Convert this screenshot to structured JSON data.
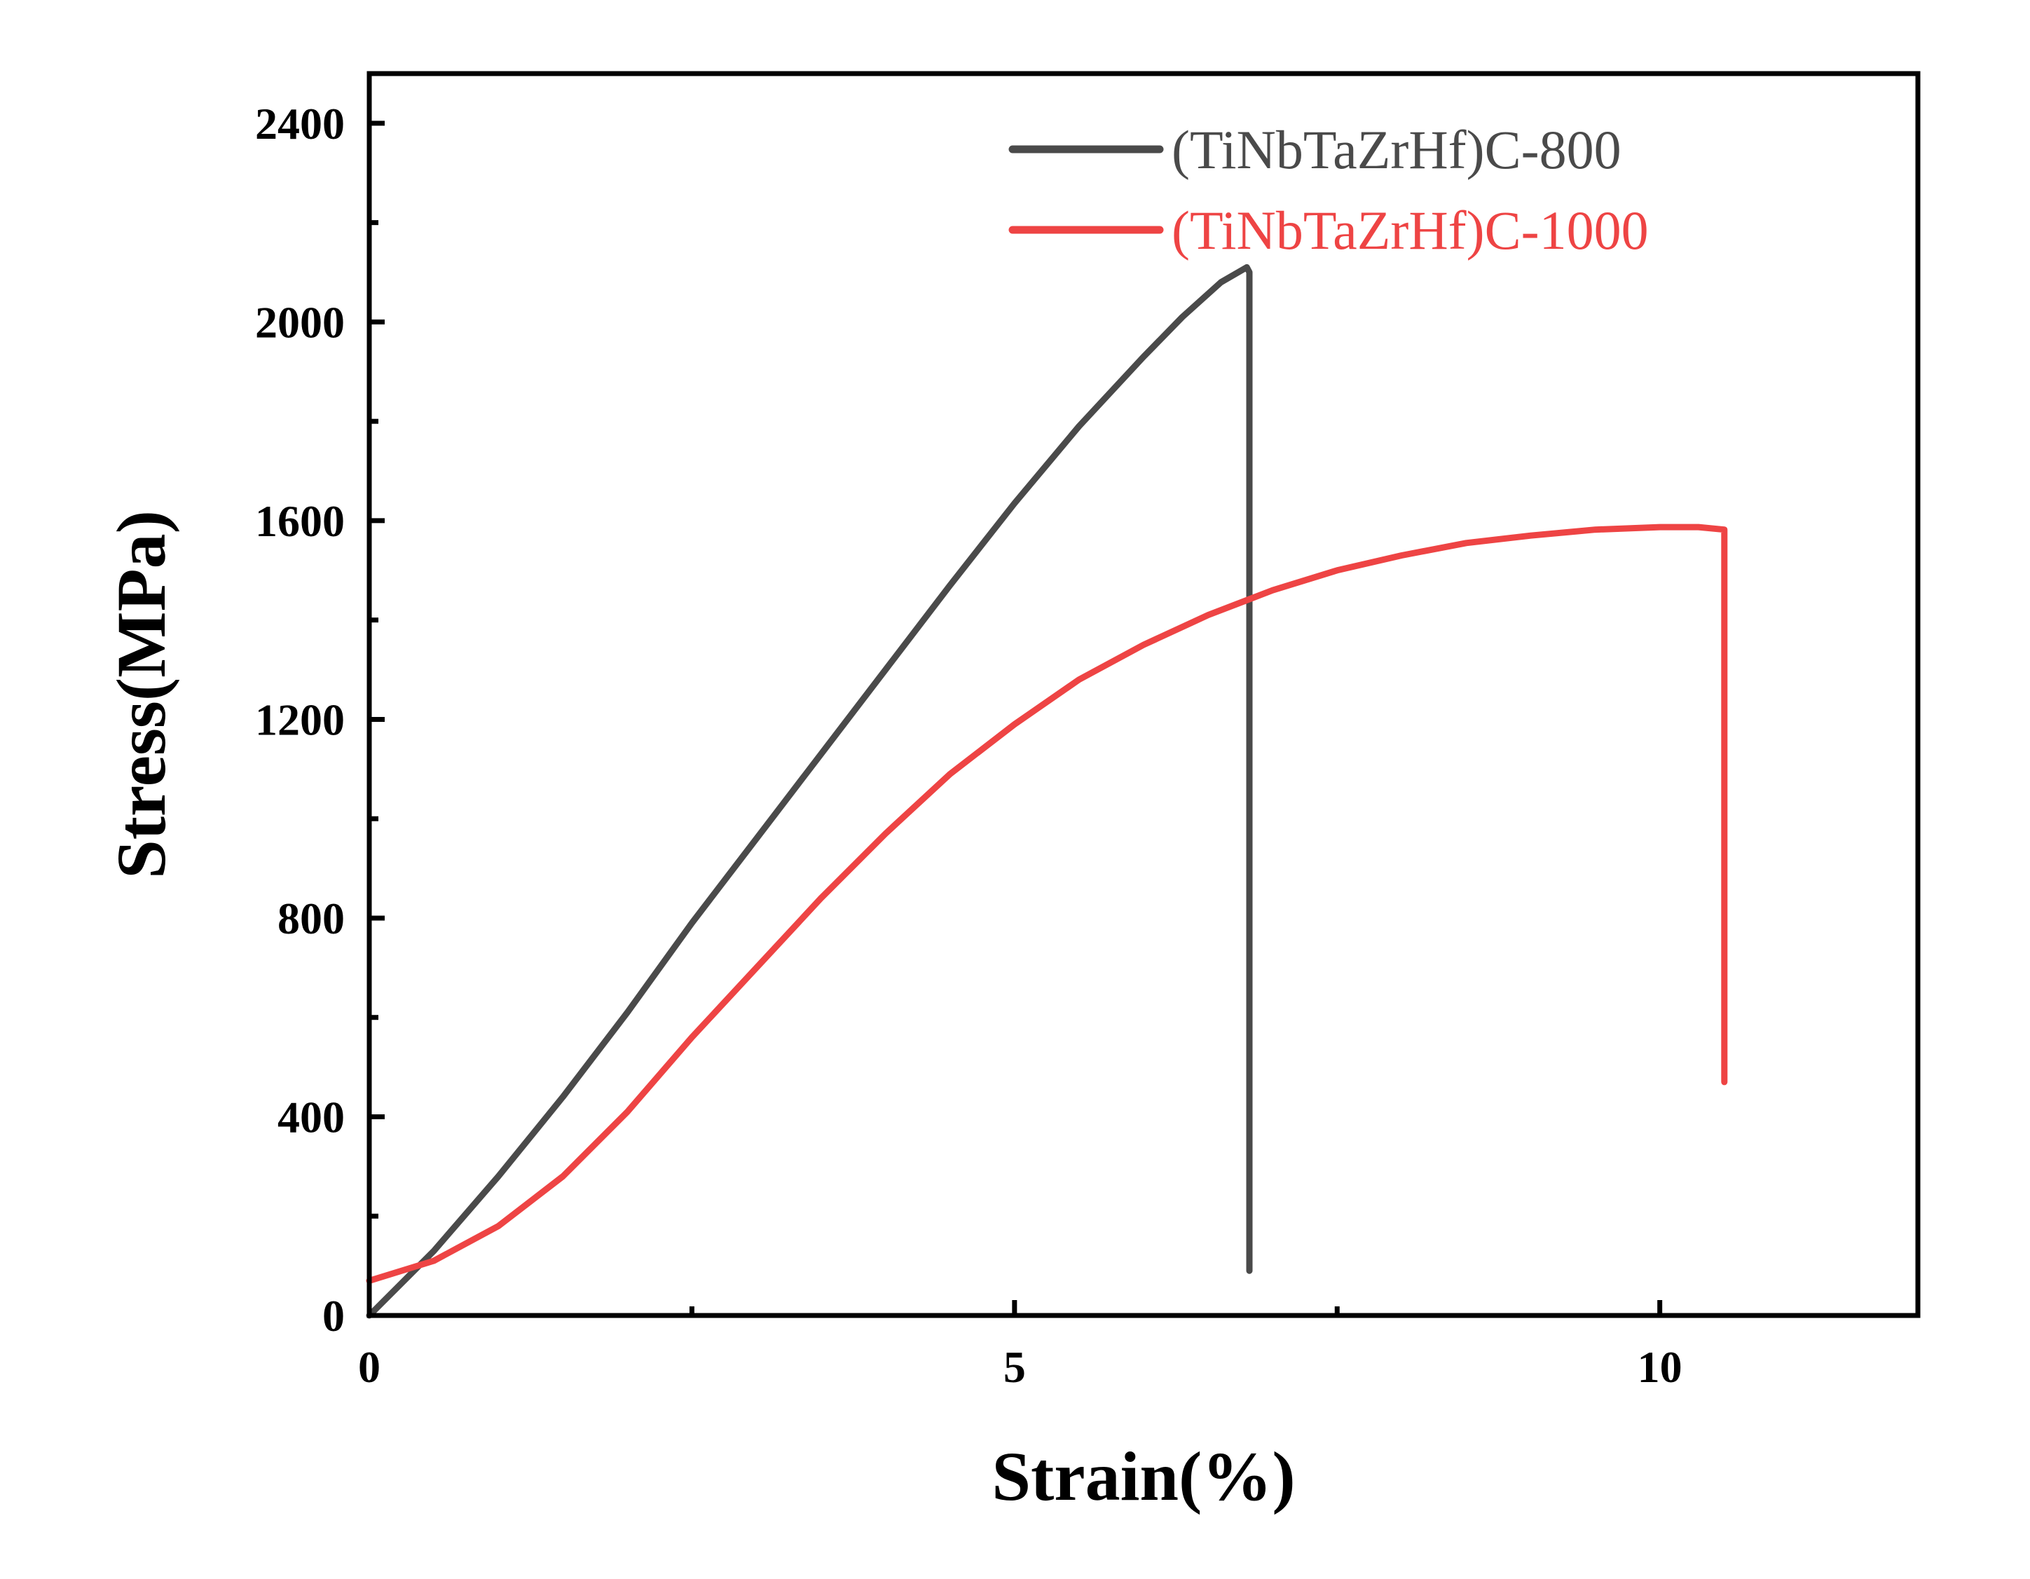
{
  "chart_data": {
    "type": "line",
    "xlabel": "Strain(%)",
    "ylabel": "Stress(MPa)",
    "xlim": [
      0,
      12
    ],
    "ylim": [
      0,
      2500
    ],
    "x_ticks": [
      0,
      5,
      10
    ],
    "x_tick_labels": [
      "0",
      "5",
      "10"
    ],
    "x_minor_ticks": [
      2.5,
      7.5
    ],
    "y_ticks": [
      0,
      400,
      800,
      1200,
      1600,
      2000,
      2400
    ],
    "y_tick_labels": [
      "0",
      "400",
      "800",
      "1200",
      "1600",
      "2000",
      "2400"
    ],
    "y_minor_ticks": [
      200,
      600,
      1000,
      1400,
      1800,
      2200
    ],
    "grid": false,
    "legend_position": "top-right",
    "series": [
      {
        "name": "(TiNbTaZrHf)C-800",
        "color": "#4a4a4a",
        "x": [
          0,
          0.5,
          1.0,
          1.5,
          2.0,
          2.5,
          3.0,
          3.5,
          4.0,
          4.5,
          5.0,
          5.5,
          6.0,
          6.3,
          6.6,
          6.8,
          6.82,
          6.82,
          6.82
        ],
        "y": [
          0,
          130,
          280,
          440,
          610,
          790,
          960,
          1130,
          1300,
          1470,
          1635,
          1790,
          1930,
          2010,
          2080,
          2110,
          2100,
          1000,
          90
        ]
      },
      {
        "name": "(TiNbTaZrHf)C-1000",
        "color": "#ee4444",
        "x": [
          0,
          0.5,
          1.0,
          1.5,
          2.0,
          2.5,
          3.0,
          3.5,
          4.0,
          4.5,
          5.0,
          5.5,
          6.0,
          6.5,
          7.0,
          7.5,
          8.0,
          8.5,
          9.0,
          9.5,
          10.0,
          10.3,
          10.5,
          10.5,
          10.5
        ],
        "y": [
          70,
          110,
          180,
          280,
          410,
          560,
          700,
          840,
          970,
          1090,
          1190,
          1280,
          1350,
          1410,
          1460,
          1500,
          1530,
          1555,
          1570,
          1582,
          1587,
          1587,
          1582,
          1200,
          470
        ]
      }
    ]
  }
}
